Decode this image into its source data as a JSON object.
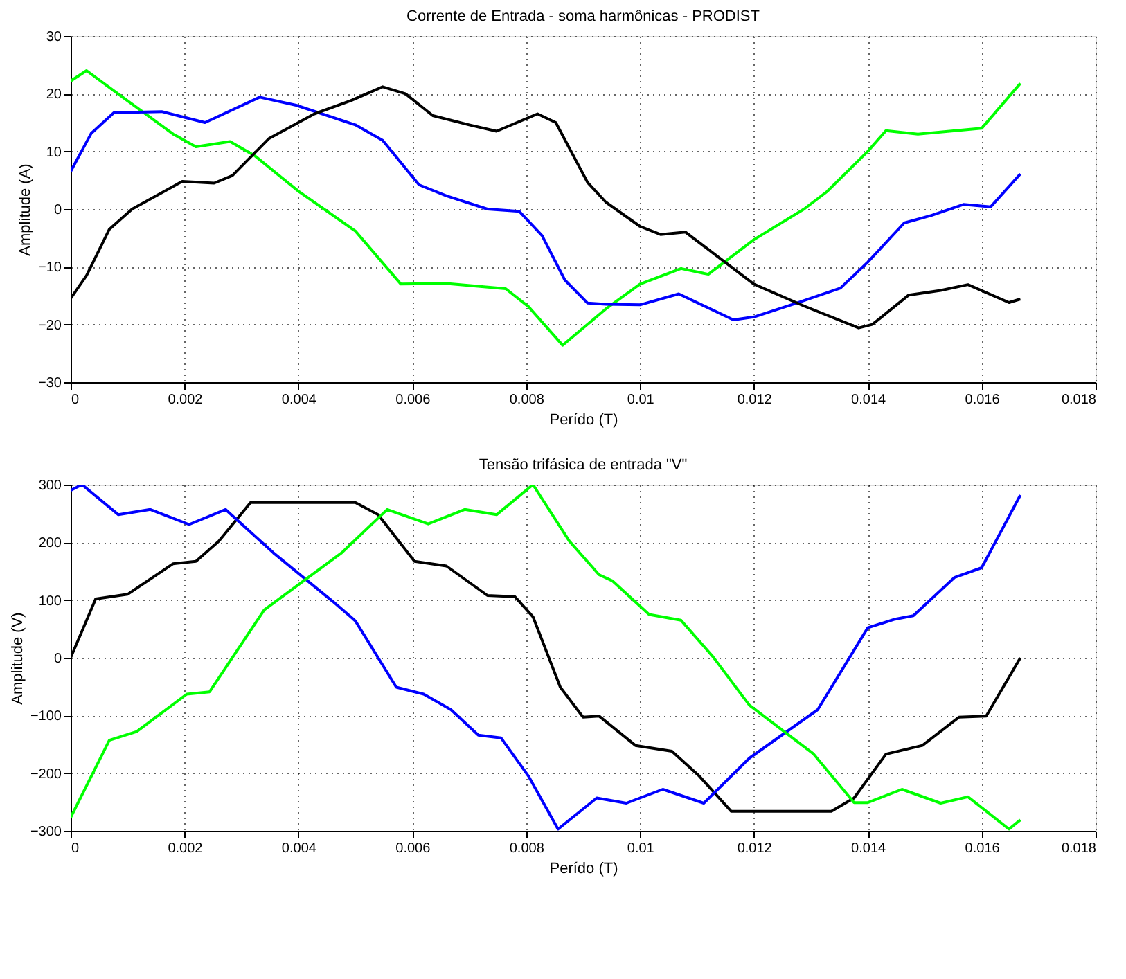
{
  "chart_data": [
    {
      "type": "line",
      "title": "Corrente de Entrada - soma harmônicas - PRODIST",
      "xlabel": "Perído (T)",
      "ylabel": "Amplitude (A)",
      "xlim": [
        0,
        0.018
      ],
      "ylim": [
        -30,
        30
      ],
      "xticks": [
        0,
        0.002,
        0.004,
        0.006,
        0.008,
        0.01,
        0.012,
        0.014,
        0.016,
        0.018
      ],
      "yticks": [
        -30,
        -20,
        -10,
        0,
        10,
        20,
        30
      ],
      "grid": true,
      "line_style": "solid",
      "marker": "none",
      "series": [
        {
          "color": "#00ff00",
          "x": [
            0,
            0.00028,
            0.00076,
            0.0018,
            0.0022,
            0.0028,
            0.00324,
            0.004,
            0.005,
            0.0058,
            0.0066,
            0.00764,
            0.00804,
            0.00864,
            0.0094,
            0.01,
            0.01072,
            0.0112,
            0.012,
            0.01288,
            0.01328,
            0.014,
            0.01432,
            0.01488,
            0.016,
            0.01668
          ],
          "values": [
            22.2,
            24,
            20.5,
            13,
            10.8,
            11.7,
            9.2,
            3.1,
            -3.8,
            -13,
            -12.9,
            -13.8,
            -16.9,
            -23.6,
            -17.3,
            -13,
            -10.3,
            -11.3,
            -5.3,
            0,
            3,
            10,
            13.6,
            13,
            14,
            21.8
          ]
        },
        {
          "color": "#0000ff",
          "x": [
            0,
            0.00036,
            0.00076,
            0.0016,
            0.00236,
            0.00332,
            0.00396,
            0.005,
            0.00548,
            0.00612,
            0.0066,
            0.00732,
            0.00788,
            0.00828,
            0.00868,
            0.00908,
            0.0094,
            0.01,
            0.01068,
            0.01164,
            0.012,
            0.01272,
            0.01352,
            0.014,
            0.01464,
            0.01512,
            0.01568,
            0.01616,
            0.01668
          ],
          "values": [
            6.5,
            13.1,
            16.7,
            16.9,
            15,
            19.4,
            18,
            14.6,
            11.9,
            4.2,
            2.3,
            0,
            -0.4,
            -4.6,
            -12.3,
            -16.3,
            -16.5,
            -16.6,
            -14.7,
            -19.2,
            -18.7,
            -16.4,
            -13.7,
            -9.2,
            -2.4,
            -1.1,
            0.8,
            0.4,
            6.1
          ]
        },
        {
          "color": "#000000",
          "x": [
            0,
            0.00028,
            0.00068,
            0.00108,
            0.00196,
            0.00252,
            0.00284,
            0.00348,
            0.00428,
            0.00492,
            0.00548,
            0.00588,
            0.00636,
            0.007,
            0.00748,
            0.0082,
            0.00852,
            0.00908,
            0.0094,
            0.01,
            0.01036,
            0.0108,
            0.01128,
            0.012,
            0.01288,
            0.01384,
            0.01408,
            0.01472,
            0.01528,
            0.01576,
            0.01648,
            0.01668
          ],
          "values": [
            -15.5,
            -11.5,
            -3.5,
            0,
            4.8,
            4.5,
            5.8,
            12.2,
            16.5,
            18.8,
            21.2,
            20,
            16.2,
            14.6,
            13.5,
            16.5,
            15,
            4.6,
            1.2,
            -3,
            -4.4,
            -4,
            -7.6,
            -13,
            -16.8,
            -20.6,
            -20,
            -14.9,
            -14.1,
            -13.1,
            -16.2,
            -15.6
          ]
        }
      ]
    },
    {
      "type": "line",
      "title": "Tensão trifásica de entrada \"V\"",
      "xlabel": "Perído (T)",
      "ylabel": "Amplitude (V)",
      "xlim": [
        0,
        0.018
      ],
      "ylim": [
        -300,
        300
      ],
      "xticks": [
        0,
        0.002,
        0.004,
        0.006,
        0.008,
        0.01,
        0.012,
        0.014,
        0.016,
        0.018
      ],
      "yticks": [
        -300,
        -200,
        -100,
        0,
        100,
        200,
        300
      ],
      "grid": true,
      "line_style": "solid",
      "marker": "none",
      "series": [
        {
          "color": "#000000",
          "x": [
            0,
            0.00044,
            0.001,
            0.0018,
            0.0022,
            0.0026,
            0.00316,
            0.005,
            0.0054,
            0.00604,
            0.0066,
            0.00732,
            0.0078,
            0.00812,
            0.0086,
            0.009,
            0.00928,
            0.00992,
            0.01056,
            0.01104,
            0.0116,
            0.01336,
            0.01376,
            0.01432,
            0.01496,
            0.0156,
            0.01608,
            0.01668
          ],
          "values": [
            0,
            102,
            110,
            163,
            167,
            202,
            269,
            269,
            248,
            167,
            159,
            108,
            106,
            71,
            -51,
            -103,
            -101,
            -152,
            -162,
            -205,
            -266,
            -266,
            -243,
            -167,
            -152,
            -103,
            -101,
            0
          ]
        },
        {
          "color": "#0000ff",
          "x": [
            0,
            0.0002,
            0.00084,
            0.0014,
            0.00208,
            0.00272,
            0.00356,
            0.0046,
            0.005,
            0.00572,
            0.0062,
            0.00668,
            0.00716,
            0.00756,
            0.00804,
            0.00856,
            0.00924,
            0.00976,
            0.0104,
            0.01112,
            0.01192,
            0.01312,
            0.014,
            0.01448,
            0.0148,
            0.01552,
            0.016,
            0.01668
          ],
          "values": [
            290,
            300,
            248,
            257,
            231,
            257,
            182,
            98,
            64,
            -51,
            -63,
            -90,
            -134,
            -139,
            -205,
            -297,
            -243,
            -252,
            -228,
            -252,
            -174,
            -90,
            52,
            67,
            73,
            139,
            156,
            282
          ]
        },
        {
          "color": "#00ff00",
          "x": [
            0,
            0.00068,
            0.00116,
            0.00204,
            0.00244,
            0.0034,
            0.00476,
            0.00556,
            0.00628,
            0.00692,
            0.00748,
            0.00812,
            0.00876,
            0.00928,
            0.00952,
            0.01016,
            0.01072,
            0.01128,
            0.01192,
            0.01304,
            0.01376,
            0.014,
            0.0146,
            0.01528,
            0.01576,
            0.01648,
            0.01668
          ],
          "values": [
            -277,
            -143,
            -128,
            -63,
            -59,
            83,
            182,
            257,
            232,
            257,
            248,
            300,
            202,
            144,
            133,
            75,
            65,
            2,
            -82,
            -166,
            -251,
            -251,
            -228,
            -252,
            -241,
            -297,
            -281
          ]
        }
      ]
    }
  ]
}
